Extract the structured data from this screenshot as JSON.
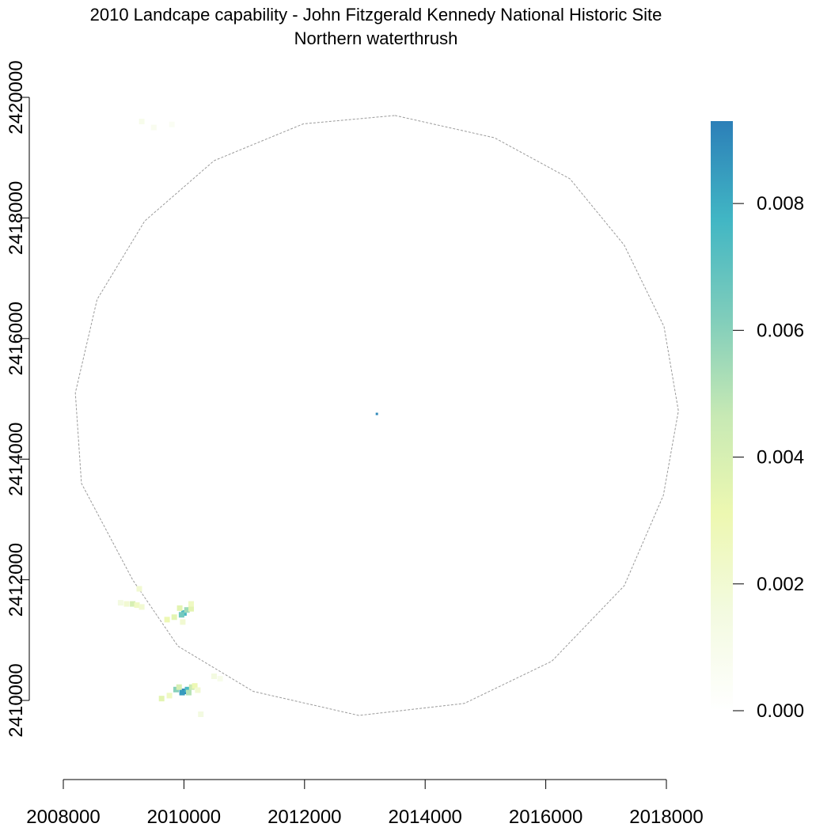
{
  "chart_data": {
    "type": "heatmap",
    "title": "2010 Landcape capability - John Fitzgerald Kennedy National Historic Site",
    "subtitle": "Northern waterthrush",
    "xlabel": "",
    "ylabel": "",
    "xlim": [
      2008000,
      2018000
    ],
    "ylim": [
      2410000,
      2420000
    ],
    "x_ticks": [
      2008000,
      2010000,
      2012000,
      2014000,
      2016000,
      2018000
    ],
    "x_tick_labels": [
      "2008000",
      "2010000",
      "2012000",
      "2014000",
      "2016000",
      "2018000"
    ],
    "y_ticks": [
      2410000,
      2412000,
      2414000,
      2416000,
      2418000,
      2420000
    ],
    "y_tick_labels": [
      "2410000",
      "2412000",
      "2414000",
      "2416000",
      "2418000",
      "2420000"
    ],
    "grid": false,
    "legend": {
      "type": "colorbar",
      "placement": "right",
      "range": [
        0,
        0.0093
      ],
      "ticks": [
        0,
        0.002,
        0.004,
        0.006,
        0.008
      ],
      "tick_labels": [
        "0.000",
        "0.002",
        "0.004",
        "0.006",
        "0.008"
      ],
      "colors": [
        "#ffffff",
        "#f3fae0",
        "#edf8b1",
        "#c7e9b4",
        "#7fcdbb",
        "#41b6c4",
        "#2c7fb8"
      ]
    },
    "boundary": {
      "style": "dashed",
      "color": "#9a9a9a",
      "vertices": [
        [
          2013500,
          2419700
        ],
        [
          2015150,
          2419330
        ],
        [
          2016400,
          2418650
        ],
        [
          2017300,
          2417550
        ],
        [
          2017960,
          2416200
        ],
        [
          2018200,
          2414800
        ],
        [
          2017950,
          2413400
        ],
        [
          2017300,
          2411900
        ],
        [
          2016100,
          2410650
        ],
        [
          2014650,
          2409950
        ],
        [
          2012900,
          2409750
        ],
        [
          2011150,
          2410150
        ],
        [
          2009900,
          2410900
        ],
        [
          2009150,
          2412000
        ],
        [
          2008300,
          2413600
        ],
        [
          2008200,
          2415100
        ],
        [
          2008560,
          2416650
        ],
        [
          2009350,
          2417950
        ],
        [
          2010500,
          2418950
        ],
        [
          2011980,
          2419560
        ]
      ]
    },
    "cells": [
      [
        2010000,
        2410150,
        0.0092
      ],
      [
        2009970,
        2410130,
        0.0085
      ],
      [
        2010060,
        2410180,
        0.0075
      ],
      [
        2009870,
        2410180,
        0.006
      ],
      [
        2010130,
        2410220,
        0.0045
      ],
      [
        2010180,
        2410240,
        0.003
      ],
      [
        2009760,
        2410080,
        0.0025
      ],
      [
        2009630,
        2410030,
        0.0035
      ],
      [
        2010080,
        2410130,
        0.005
      ],
      [
        2009920,
        2410220,
        0.004
      ],
      [
        2010230,
        2410170,
        0.002
      ],
      [
        2010280,
        2409770,
        0.0015
      ],
      [
        2010000,
        2411450,
        0.0075
      ],
      [
        2009960,
        2411420,
        0.0065
      ],
      [
        2010050,
        2411500,
        0.0055
      ],
      [
        2010120,
        2411520,
        0.0035
      ],
      [
        2010120,
        2411600,
        0.0025
      ],
      [
        2009930,
        2411530,
        0.0035
      ],
      [
        2009840,
        2411380,
        0.0035
      ],
      [
        2009720,
        2411340,
        0.003
      ],
      [
        2009980,
        2411300,
        0.002
      ],
      [
        2009150,
        2411600,
        0.004
      ],
      [
        2009220,
        2411580,
        0.0025
      ],
      [
        2009050,
        2411600,
        0.002
      ],
      [
        2008950,
        2411620,
        0.0015
      ],
      [
        2009300,
        2411550,
        0.002
      ],
      [
        2009260,
        2411850,
        0.002
      ],
      [
        2010500,
        2410400,
        0.0015
      ],
      [
        2010600,
        2410360,
        0.001
      ],
      [
        2009300,
        2419600,
        0.001
      ],
      [
        2009500,
        2419500,
        0.0008
      ],
      [
        2009800,
        2419550,
        0.0006
      ],
      [
        2013200,
        2414750,
        0.009
      ]
    ]
  }
}
